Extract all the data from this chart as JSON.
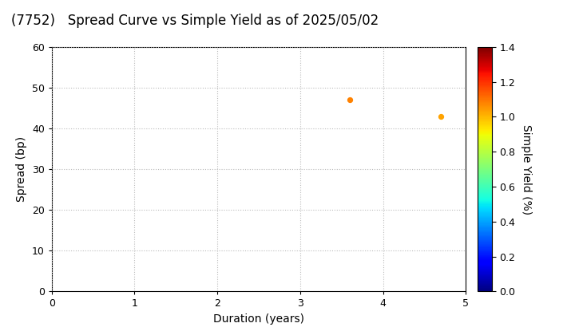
{
  "title": "(7752)   Spread Curve vs Simple Yield as of 2025/05/02",
  "xlabel": "Duration (years)",
  "ylabel": "Spread (bp)",
  "colorbar_label": "Simple Yield (%)",
  "points": [
    {
      "duration": 3.6,
      "spread": 47.0,
      "simple_yield": 1.08
    },
    {
      "duration": 4.7,
      "spread": 43.0,
      "simple_yield": 1.03
    }
  ],
  "xlim": [
    0,
    5
  ],
  "ylim": [
    0,
    60
  ],
  "xticks": [
    0,
    1,
    2,
    3,
    4,
    5
  ],
  "yticks": [
    0,
    10,
    20,
    30,
    40,
    50,
    60
  ],
  "colorbar_min": 0.0,
  "colorbar_max": 1.4,
  "colorbar_ticks": [
    0.0,
    0.2,
    0.4,
    0.6,
    0.8,
    1.0,
    1.2,
    1.4
  ],
  "marker_size": 18,
  "background_color": "#ffffff",
  "grid_color": "#bbbbbb",
  "title_fontsize": 12,
  "axis_fontsize": 10,
  "tick_fontsize": 9,
  "colorbar_label_fontsize": 10
}
